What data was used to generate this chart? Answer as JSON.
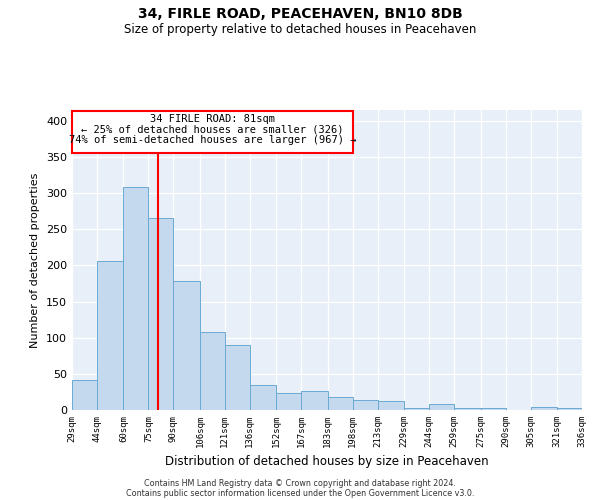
{
  "title": "34, FIRLE ROAD, PEACEHAVEN, BN10 8DB",
  "subtitle": "Size of property relative to detached houses in Peacehaven",
  "xlabel": "Distribution of detached houses by size in Peacehaven",
  "ylabel": "Number of detached properties",
  "bar_color": "#c5d9ee",
  "bar_edge_color": "#6aaad4",
  "bg_color": "#e8eff8",
  "gridcolor": "#ffffff",
  "vline_x": 81,
  "vline_color": "red",
  "annotation_line1": "34 FIRLE ROAD: 81sqm",
  "annotation_line2": "← 25% of detached houses are smaller (326)",
  "annotation_line3": "74% of semi-detached houses are larger (967) →",
  "bin_edges": [
    29,
    44,
    60,
    75,
    90,
    106,
    121,
    136,
    152,
    167,
    183,
    198,
    213,
    229,
    244,
    259,
    275,
    290,
    305,
    321,
    336
  ],
  "bin_heights": [
    42,
    206,
    308,
    265,
    178,
    108,
    90,
    35,
    23,
    26,
    18,
    14,
    13,
    3,
    8,
    3,
    3,
    0,
    4,
    3
  ],
  "ylim": [
    0,
    415
  ],
  "yticks": [
    0,
    50,
    100,
    150,
    200,
    250,
    300,
    350,
    400
  ],
  "footer1": "Contains HM Land Registry data © Crown copyright and database right 2024.",
  "footer2": "Contains public sector information licensed under the Open Government Licence v3.0."
}
